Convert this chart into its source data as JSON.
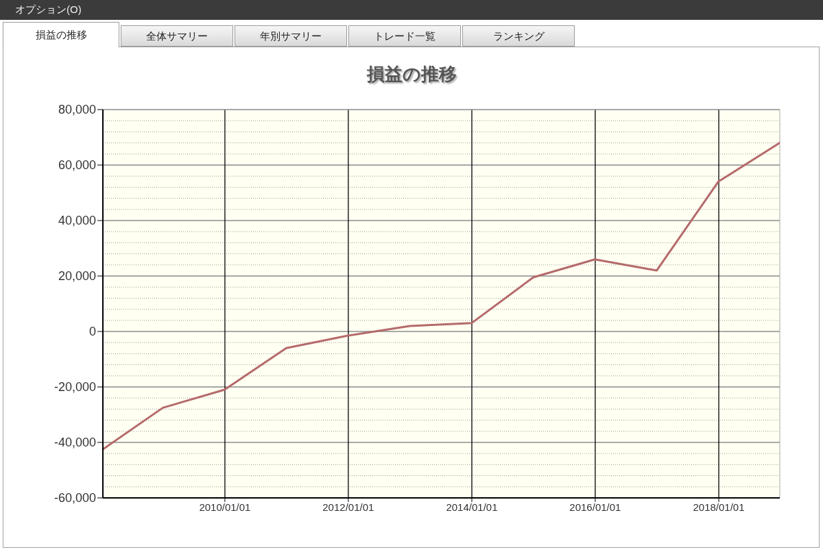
{
  "chart_data": {
    "type": "line",
    "title": "損益の推移",
    "annotations": [
      "オプション(O)",
      "損益の推移",
      "全体サマリー",
      "年別サマリー",
      "トレード一覧",
      "ランキング"
    ],
    "x": [
      "2008-01-10",
      "2008-12-30",
      "2009-12-30",
      "2010-12-30",
      "2011-12-30",
      "2012-12-30",
      "2013-12-30",
      "2014-12-30",
      "2015-12-30",
      "2016-12-30",
      "2017-12-29",
      "2018-12-28"
    ],
    "values": [
      -42500,
      -27500,
      -21000,
      -6000,
      -1500,
      2000,
      3000,
      19500,
      26000,
      22000,
      54000,
      68000
    ],
    "color": "#b56a6a",
    "xlim": [
      "2008-01-10",
      "2018-12-28"
    ],
    "xticks": [
      {
        "value": "2010-01-01",
        "label": "2010/01/01"
      },
      {
        "value": "2012-01-01",
        "label": "2012/01/01"
      },
      {
        "value": "2014-01-01",
        "label": "2014/01/01"
      },
      {
        "value": "2016-01-01",
        "label": "2016/01/01"
      },
      {
        "value": "2018-01-01",
        "label": "2018/01/01"
      }
    ],
    "ylim": [
      -60000,
      80000
    ],
    "yticks": [
      {
        "value": -60000,
        "label": "-60,000"
      },
      {
        "value": -56000,
        "label": null
      },
      {
        "value": -52000,
        "label": null
      },
      {
        "value": -48000,
        "label": null
      },
      {
        "value": -44000,
        "label": null
      },
      {
        "value": -40000,
        "label": "-40,000"
      },
      {
        "value": -36000,
        "label": null
      },
      {
        "value": -32000,
        "label": null
      },
      {
        "value": -28000,
        "label": null
      },
      {
        "value": -24000,
        "label": null
      },
      {
        "value": -20000,
        "label": "-20,000"
      },
      {
        "value": -16000,
        "label": null
      },
      {
        "value": -12000,
        "label": null
      },
      {
        "value": -8000,
        "label": null
      },
      {
        "value": -4000,
        "label": null
      },
      0,
      {
        "value": 4000,
        "label": null
      },
      {
        "value": 8000,
        "label": null
      },
      {
        "value": 12000,
        "label": null
      },
      {
        "value": 16000,
        "label": null
      },
      {
        "value": 20000,
        "label": "20,000"
      },
      {
        "value": 24000,
        "label": null
      },
      {
        "value": 28000,
        "label": null
      },
      {
        "value": 32000,
        "label": null
      },
      {
        "value": 36000,
        "label": null
      },
      {
        "value": 40000,
        "label": "40,000"
      },
      {
        "value": 44000,
        "label": null
      },
      {
        "value": 48000,
        "label": null
      },
      {
        "value": 52000,
        "label": null
      },
      {
        "value": 56000,
        "label": null
      },
      {
        "value": 60000,
        "label": "60,000"
      },
      {
        "value": 64000,
        "label": null
      },
      {
        "value": 68000,
        "label": null
      },
      {
        "value": 72000,
        "label": null
      },
      {
        "value": 76000,
        "label": null
      },
      {
        "value": 80000,
        "label": "80,000"
      }
    ],
    "grid": true
  }
}
